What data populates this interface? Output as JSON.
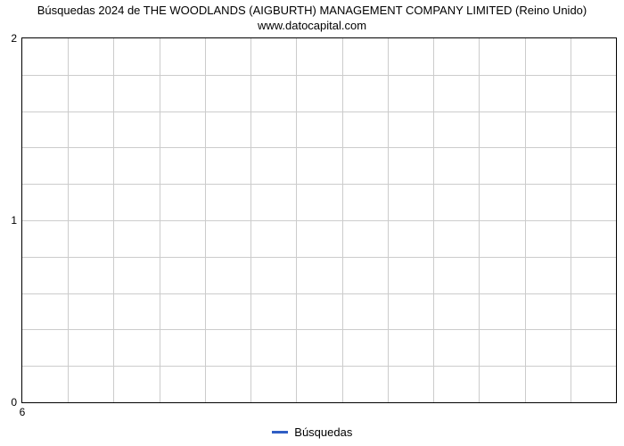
{
  "chart": {
    "type": "line",
    "title_line1": "Búsquedas 2024 de THE WOODLANDS (AIGBURTH) MANAGEMENT COMPANY LIMITED (Reino Unido)",
    "title_line2": "www.datocapital.com",
    "title_fontsize": 13,
    "background_color": "#ffffff",
    "border_color": "#000000",
    "grid_color": "#cccccc",
    "y_ticks": [
      {
        "value": 0,
        "label": "0",
        "pos_pct": 100
      },
      {
        "value": 1,
        "label": "1",
        "pos_pct": 50
      },
      {
        "value": 2,
        "label": "2",
        "pos_pct": 0
      }
    ],
    "x_ticks": [
      {
        "value": 6,
        "label": "6",
        "pos_pct": 0
      }
    ],
    "ylim": [
      0,
      2
    ],
    "x_grid_count": 13,
    "y_minor_per_major": 5,
    "legend": {
      "label": "Búsquedas",
      "color": "#2f5ec4",
      "line_width": 3
    },
    "series": [
      {
        "name": "Búsquedas",
        "color": "#2f5ec4",
        "line_width": 2,
        "data": []
      }
    ]
  }
}
